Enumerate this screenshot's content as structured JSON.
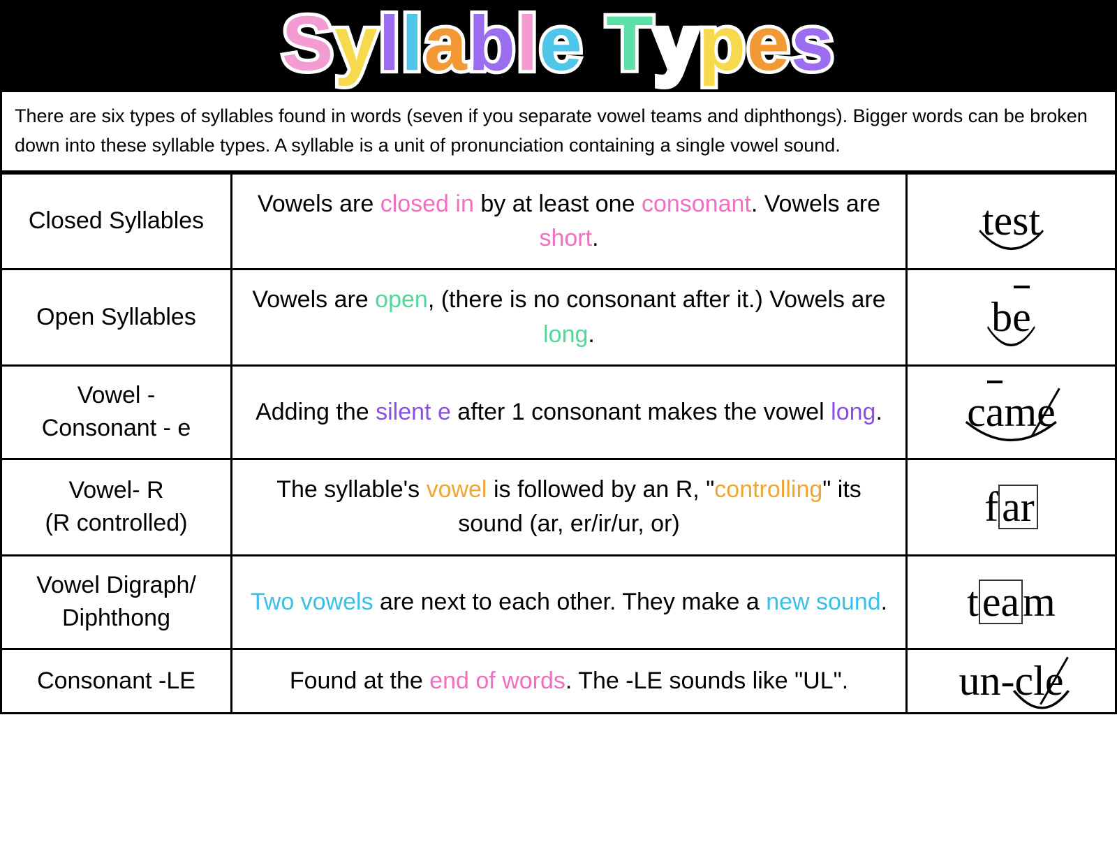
{
  "title_text": "Syllable Types",
  "title_colors": [
    "#f29cd2",
    "#f6d94c",
    "#9b6ef0",
    "#4fc5e8",
    "#f29936",
    "#9b6ef0",
    "#f29cd2",
    "#4fc5e8",
    "#5de0a6",
    "#ffffff",
    "#f6d94c",
    "#f29936",
    "#9b6ef0",
    "#4fc5e8",
    "#f29cd2"
  ],
  "intro": "There are six types of syllables found in words (seven if you separate vowel teams and diphthongs). Bigger words can be broken down into these syllable types. A syllable is a unit of pronunciation containing a single vowel sound.",
  "highlight_colors": {
    "pink": "#f06fc0",
    "green": "#4fd89a",
    "purple": "#8b4fe8",
    "orange": "#f2a532",
    "blue": "#39bfe8"
  },
  "rows": [
    {
      "name": "Closed Syllables",
      "desc_parts": [
        {
          "t": "Vowels are "
        },
        {
          "t": "closed in",
          "c": "pink"
        },
        {
          "t": " by at least one "
        },
        {
          "t": "consonant",
          "c": "pink"
        },
        {
          "t": ". Vowels are "
        },
        {
          "t": "short",
          "c": "pink"
        },
        {
          "t": "."
        }
      ],
      "example": "test",
      "ex_type": "arc"
    },
    {
      "name": "Open Syllables",
      "desc_parts": [
        {
          "t": "Vowels are "
        },
        {
          "t": "open",
          "c": "green"
        },
        {
          "t": ", (there is no consonant after it.) Vowels are "
        },
        {
          "t": "long",
          "c": "green"
        },
        {
          "t": "."
        }
      ],
      "example": "be",
      "ex_type": "arc_macron_e"
    },
    {
      "name": "Vowel - Consonant - e",
      "desc_parts": [
        {
          "t": "Adding the "
        },
        {
          "t": "silent e",
          "c": "purple"
        },
        {
          "t": " after 1 consonant makes the vowel "
        },
        {
          "t": "long",
          "c": "purple"
        },
        {
          "t": "."
        }
      ],
      "example": "came",
      "ex_type": "came"
    },
    {
      "name": "Vowel- R (R controlled)",
      "desc_parts": [
        {
          "t": "The syllable's "
        },
        {
          "t": "vowel",
          "c": "orange"
        },
        {
          "t": " is followed by an R, \""
        },
        {
          "t": "controlling",
          "c": "orange"
        },
        {
          "t": "\" its sound (ar, er/ir/ur, or)"
        }
      ],
      "example": "far",
      "ex_type": "far"
    },
    {
      "name": "Vowel Digraph/ Diphthong",
      "desc_parts": [
        {
          "t": "Two vowels",
          "c": "blue"
        },
        {
          "t": " are next to each other. They make a "
        },
        {
          "t": "new sound",
          "c": "blue"
        },
        {
          "t": "."
        }
      ],
      "example": "team",
      "ex_type": "team"
    },
    {
      "name": "Consonant -LE",
      "desc_parts": [
        {
          "t": "Found at the "
        },
        {
          "t": "end of words",
          "c": "pink"
        },
        {
          "t": ". The -LE sounds like \"UL\"."
        }
      ],
      "example": "un-cle",
      "ex_type": "uncle"
    }
  ]
}
